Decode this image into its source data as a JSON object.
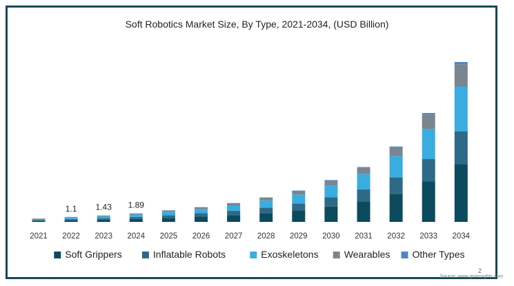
{
  "chart_data": {
    "type": "bar",
    "stacked": true,
    "title": "Soft Robotics Market Size, By Type, 2021-2034, (USD Billion)",
    "xlabel": "",
    "ylabel": "",
    "categories": [
      "2021",
      "2022",
      "2023",
      "2024",
      "2025",
      "2026",
      "2027",
      "2028",
      "2029",
      "2030",
      "2031",
      "2032",
      "2033",
      "2034"
    ],
    "series": [
      {
        "name": "Soft Grippers",
        "color": "#0c4a5e",
        "values": [
          0.22,
          0.36,
          0.47,
          0.62,
          0.88,
          1.15,
          1.5,
          1.95,
          2.5,
          3.4,
          4.5,
          6.2,
          8.9,
          12.7
        ]
      },
      {
        "name": "Inflatable Robots",
        "color": "#2e6a88",
        "values": [
          0.18,
          0.27,
          0.35,
          0.46,
          0.6,
          0.75,
          0.95,
          1.2,
          1.55,
          2.05,
          2.7,
          3.65,
          5.0,
          7.3
        ]
      },
      {
        "name": "Exoskeletons",
        "color": "#3aade0",
        "values": [
          0.22,
          0.3,
          0.42,
          0.56,
          0.75,
          0.95,
          1.2,
          1.6,
          2.0,
          2.6,
          3.4,
          4.7,
          6.6,
          9.9
        ]
      },
      {
        "name": "Wearables",
        "color": "#7a8590",
        "values": [
          0.12,
          0.15,
          0.17,
          0.23,
          0.3,
          0.38,
          0.48,
          0.62,
          0.8,
          1.1,
          1.4,
          1.9,
          3.2,
          4.9
        ]
      },
      {
        "name": "Other Types",
        "color": "#4f86c6",
        "values": [
          0.02,
          0.02,
          0.02,
          0.02,
          0.03,
          0.04,
          0.05,
          0.05,
          0.07,
          0.1,
          0.12,
          0.2,
          0.35,
          0.5
        ]
      }
    ],
    "data_labels": [
      {
        "category": "2022",
        "text": "1.1"
      },
      {
        "category": "2023",
        "text": "1.43"
      },
      {
        "category": "2024",
        "text": "1.89"
      }
    ],
    "ylim": [
      0,
      35.3
    ],
    "grid": false,
    "legend_position": "bottom"
  },
  "footer": {
    "page_number": "2",
    "source": "Source: www.gminsights.com"
  }
}
